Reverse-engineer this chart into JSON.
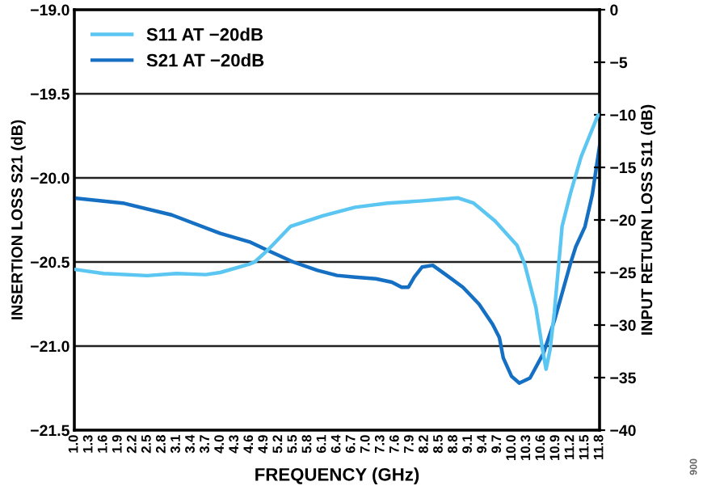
{
  "chart_data": {
    "type": "line",
    "xlabel": "FREQUENCY (GHz)",
    "ylabel": "INSERTION LOSS S21 (dB)",
    "y2label": "INPUT RETURN LOSS S11 (dB)",
    "xlim": [
      1.0,
      11.8
    ],
    "xticks": [
      {
        "value": 1.0,
        "label": "1.0"
      },
      1.3,
      1.6,
      1.9,
      2.2,
      2.5,
      2.8,
      3.1,
      3.4,
      3.7,
      {
        "value": 4.0,
        "label": "4.0"
      },
      4.3,
      4.6,
      4.9,
      5.2,
      5.5,
      5.8,
      6.1,
      6.4,
      6.7,
      {
        "value": 7.0,
        "label": "7.0"
      },
      7.3,
      7.6,
      7.9,
      8.2,
      8.5,
      8.8,
      9.1,
      9.4,
      9.7,
      {
        "value": 10.0,
        "label": "10.0"
      },
      10.3,
      10.6,
      10.9,
      11.2,
      11.5,
      11.8
    ],
    "ylim": [
      -21.5,
      -19.0
    ],
    "yticks": [
      {
        "value": -21.5,
        "label": "−21.5"
      },
      {
        "value": -21.0,
        "label": "−21.0"
      },
      {
        "value": -20.5,
        "label": "−20.5"
      },
      {
        "value": -20.0,
        "label": "−20.0"
      },
      {
        "value": -19.5,
        "label": "−19.5"
      },
      {
        "value": -19.0,
        "label": "−19.0"
      }
    ],
    "y2lim": [
      -40,
      0
    ],
    "y2ticks": [
      {
        "value": -40,
        "label": "−40"
      },
      {
        "value": -35,
        "label": "−35"
      },
      {
        "value": -30,
        "label": "−30"
      },
      {
        "value": -25,
        "label": "−25"
      },
      {
        "value": -20,
        "label": "−20"
      },
      {
        "value": -15,
        "label": "−15"
      },
      {
        "value": -10,
        "label": "−10"
      },
      {
        "value": -5,
        "label": "−5"
      },
      {
        "value": 0,
        "label": "0"
      }
    ],
    "grid": "y",
    "legend": "top left",
    "line_style": "solid",
    "marker": "none",
    "annotations": [
      "006"
    ],
    "series": [
      {
        "name": "S11 AT −20dB",
        "color": "#5bc6f2",
        "axis": "y2",
        "x": [
          1.0,
          1.6,
          2.5,
          3.1,
          3.7,
          4.0,
          4.6,
          4.71,
          4.97,
          5.45,
          6.11,
          6.77,
          7.44,
          8.1,
          8.88,
          9.21,
          9.65,
          10.1,
          10.26,
          10.49,
          10.63,
          10.7,
          10.78,
          10.87,
          11.03,
          11.2,
          11.42,
          11.76,
          11.8
        ],
        "values": [
          -24.7,
          -25.1,
          -25.3,
          -25.1,
          -25.2,
          -25.0,
          -24.2,
          -24.0,
          -22.9,
          -20.6,
          -19.6,
          -18.8,
          -18.4,
          -18.2,
          -17.9,
          -18.4,
          -20.1,
          -22.4,
          -24.2,
          -28.3,
          -32.4,
          -34.2,
          -32.4,
          -28.8,
          -20.6,
          -17.5,
          -14.0,
          -10.1,
          -10.0
        ]
      },
      {
        "name": "S21 AT −20dB",
        "color": "#1570c4",
        "x": [
          1.0,
          2.0,
          3.0,
          4.0,
          4.6,
          4.97,
          5.5,
          6.0,
          6.4,
          6.77,
          7.2,
          7.53,
          7.73,
          7.87,
          7.99,
          8.15,
          8.37,
          8.66,
          8.99,
          9.32,
          9.6,
          9.74,
          9.82,
          9.99,
          10.15,
          10.37,
          10.65,
          10.87,
          11.2,
          11.31,
          11.5,
          11.65,
          11.8
        ],
        "values": [
          -20.12,
          -20.15,
          -20.22,
          -20.33,
          -20.38,
          -20.43,
          -20.5,
          -20.55,
          -20.58,
          -20.59,
          -20.6,
          -20.62,
          -20.65,
          -20.65,
          -20.59,
          -20.53,
          -20.52,
          -20.58,
          -20.65,
          -20.75,
          -20.87,
          -20.95,
          -21.07,
          -21.18,
          -21.22,
          -21.19,
          -21.04,
          -20.85,
          -20.51,
          -20.41,
          -20.29,
          -20.1,
          -19.81
        ]
      }
    ]
  }
}
